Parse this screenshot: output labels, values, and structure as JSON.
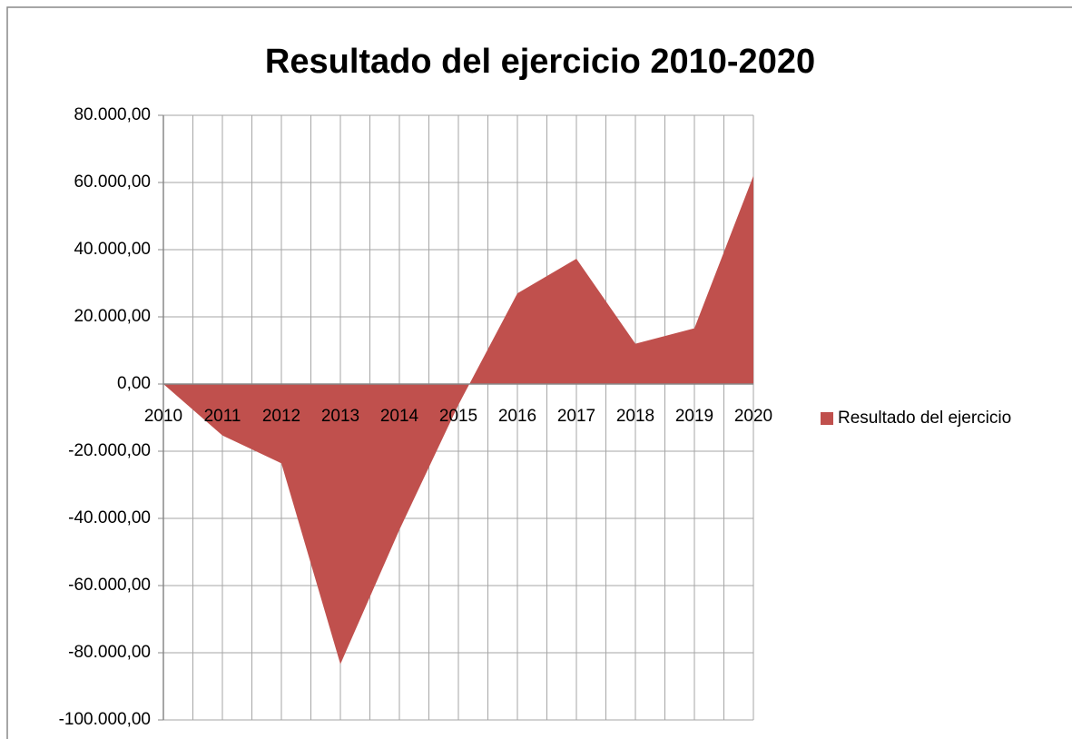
{
  "chart_data": {
    "type": "area",
    "title": "Resultado del ejercicio 2010-2020",
    "categories": [
      "2010",
      "2011",
      "2012",
      "2013",
      "2014",
      "2015",
      "2016",
      "2017",
      "2018",
      "2019",
      "2020"
    ],
    "series": [
      {
        "name": "Resultado del ejercicio",
        "color": "#c0504d",
        "values": [
          0,
          -15300,
          -23600,
          -83400,
          -43400,
          -6200,
          27000,
          37300,
          12000,
          16600,
          62000
        ]
      }
    ],
    "ylim": [
      -100000,
      80000
    ],
    "yticks": [
      {
        "value": -100000,
        "label": "-100.000,00"
      },
      {
        "value": -80000,
        "label": "-80.000,00"
      },
      {
        "value": -60000,
        "label": "-60.000,00"
      },
      {
        "value": -40000,
        "label": "-40.000,00"
      },
      {
        "value": -20000,
        "label": "-20.000,00"
      },
      {
        "value": 0,
        "label": "0,00"
      },
      {
        "value": 20000,
        "label": "20.000,00"
      },
      {
        "value": 40000,
        "label": "40.000,00"
      },
      {
        "value": 60000,
        "label": "60.000,00"
      },
      {
        "value": 80000,
        "label": "80.000,00"
      }
    ],
    "grid": true,
    "legend": "right"
  }
}
